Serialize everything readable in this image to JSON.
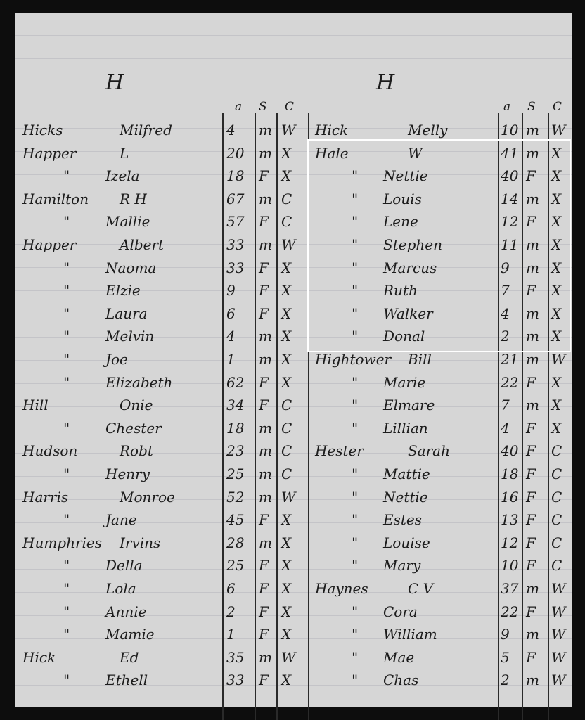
{
  "left_column": {
    "section_letter": "H",
    "headers": {
      "age": "a",
      "sex": "S",
      "color": "C"
    },
    "entries": [
      {
        "surname": "Hicks",
        "given": "Milfred",
        "age": "4",
        "sex": "m",
        "color": "W"
      },
      {
        "surname": "Happer",
        "given": "L",
        "age": "20",
        "sex": "m",
        "color": "X"
      },
      {
        "surname": "\"",
        "given": "Izela",
        "age": "18",
        "sex": "F",
        "color": "X"
      },
      {
        "surname": "Hamilton",
        "given": "R H",
        "age": "67",
        "sex": "m",
        "color": "C"
      },
      {
        "surname": "\"",
        "given": "Mallie",
        "age": "57",
        "sex": "F",
        "color": "C"
      },
      {
        "surname": "Happer",
        "given": "Albert",
        "age": "33",
        "sex": "m",
        "color": "W"
      },
      {
        "surname": "\"",
        "given": "Naoma",
        "age": "33",
        "sex": "F",
        "color": "X"
      },
      {
        "surname": "\"",
        "given": "Elzie",
        "age": "9",
        "sex": "F",
        "color": "X"
      },
      {
        "surname": "\"",
        "given": "Laura",
        "age": "6",
        "sex": "F",
        "color": "X"
      },
      {
        "surname": "\"",
        "given": "Melvin",
        "age": "4",
        "sex": "m",
        "color": "X"
      },
      {
        "surname": "\"",
        "given": "Joe",
        "age": "1",
        "sex": "m",
        "color": "X"
      },
      {
        "surname": "\"",
        "given": "Elizabeth",
        "age": "62",
        "sex": "F",
        "color": "X"
      },
      {
        "surname": "Hill",
        "given": "Onie",
        "age": "34",
        "sex": "F",
        "color": "C"
      },
      {
        "surname": "\"",
        "given": "Chester",
        "age": "18",
        "sex": "m",
        "color": "C"
      },
      {
        "surname": "Hudson",
        "given": "Robt",
        "age": "23",
        "sex": "m",
        "color": "C"
      },
      {
        "surname": "\"",
        "given": "Henry",
        "age": "25",
        "sex": "m",
        "color": "C"
      },
      {
        "surname": "Harris",
        "given": "Monroe",
        "age": "52",
        "sex": "m",
        "color": "W"
      },
      {
        "surname": "\"",
        "given": "Jane",
        "age": "45",
        "sex": "F",
        "color": "X"
      },
      {
        "surname": "Humphries",
        "given": "Irvins",
        "age": "28",
        "sex": "m",
        "color": "X"
      },
      {
        "surname": "\"",
        "given": "Della",
        "age": "25",
        "sex": "F",
        "color": "X"
      },
      {
        "surname": "\"",
        "given": "Lola",
        "age": "6",
        "sex": "F",
        "color": "X"
      },
      {
        "surname": "\"",
        "given": "Annie",
        "age": "2",
        "sex": "F",
        "color": "X"
      },
      {
        "surname": "\"",
        "given": "Mamie",
        "age": "1",
        "sex": "F",
        "color": "X"
      },
      {
        "surname": "Hick",
        "given": "Ed",
        "age": "35",
        "sex": "m",
        "color": "W"
      },
      {
        "surname": "\"",
        "given": "Ethell",
        "age": "33",
        "sex": "F",
        "color": "X"
      }
    ]
  },
  "right_column": {
    "section_letter": "H",
    "headers": {
      "age": "a",
      "sex": "S",
      "color": "C"
    },
    "entries": [
      {
        "surname": "Hick",
        "given": "Melly",
        "age": "10",
        "sex": "m",
        "color": "W"
      },
      {
        "surname": "Hale",
        "given": "W",
        "age": "41",
        "sex": "m",
        "color": "X"
      },
      {
        "surname": "\"",
        "given": "Nettie",
        "age": "40",
        "sex": "F",
        "color": "X"
      },
      {
        "surname": "\"",
        "given": "Louis",
        "age": "14",
        "sex": "m",
        "color": "X"
      },
      {
        "surname": "\"",
        "given": "Lene",
        "age": "12",
        "sex": "F",
        "color": "X"
      },
      {
        "surname": "\"",
        "given": "Stephen",
        "age": "11",
        "sex": "m",
        "color": "X"
      },
      {
        "surname": "\"",
        "given": "Marcus",
        "age": "9",
        "sex": "m",
        "color": "X"
      },
      {
        "surname": "\"",
        "given": "Ruth",
        "age": "7",
        "sex": "F",
        "color": "X"
      },
      {
        "surname": "\"",
        "given": "Walker",
        "age": "4",
        "sex": "m",
        "color": "X"
      },
      {
        "surname": "\"",
        "given": "Donal",
        "age": "2",
        "sex": "m",
        "color": "X"
      },
      {
        "surname": "Hightower",
        "given": "Bill",
        "age": "21",
        "sex": "m",
        "color": "W"
      },
      {
        "surname": "\"",
        "given": "Marie",
        "age": "22",
        "sex": "F",
        "color": "X"
      },
      {
        "surname": "\"",
        "given": "Elmare",
        "age": "7",
        "sex": "m",
        "color": "X"
      },
      {
        "surname": "\"",
        "given": "Lillian",
        "age": "4",
        "sex": "F",
        "color": "X"
      },
      {
        "surname": "Hester",
        "given": "Sarah",
        "age": "40",
        "sex": "F",
        "color": "C"
      },
      {
        "surname": "\"",
        "given": "Mattie",
        "age": "18",
        "sex": "F",
        "color": "C"
      },
      {
        "surname": "\"",
        "given": "Nettie",
        "age": "16",
        "sex": "F",
        "color": "C"
      },
      {
        "surname": "\"",
        "given": "Estes",
        "age": "13",
        "sex": "F",
        "color": "C"
      },
      {
        "surname": "\"",
        "given": "Louise",
        "age": "12",
        "sex": "F",
        "color": "C"
      },
      {
        "surname": "\"",
        "given": "Mary",
        "age": "10",
        "sex": "F",
        "color": "C"
      },
      {
        "surname": "Haynes",
        "given": "C V",
        "age": "37",
        "sex": "m",
        "color": "W"
      },
      {
        "surname": "\"",
        "given": "Cora",
        "age": "22",
        "sex": "F",
        "color": "W"
      },
      {
        "surname": "\"",
        "given": "William",
        "age": "9",
        "sex": "m",
        "color": "W"
      },
      {
        "surname": "\"",
        "given": "Mae",
        "age": "5",
        "sex": "F",
        "color": "W"
      },
      {
        "surname": "\"",
        "given": "Chas",
        "age": "2",
        "sex": "m",
        "color": "W"
      }
    ]
  },
  "highlight_color": "#ffffff"
}
